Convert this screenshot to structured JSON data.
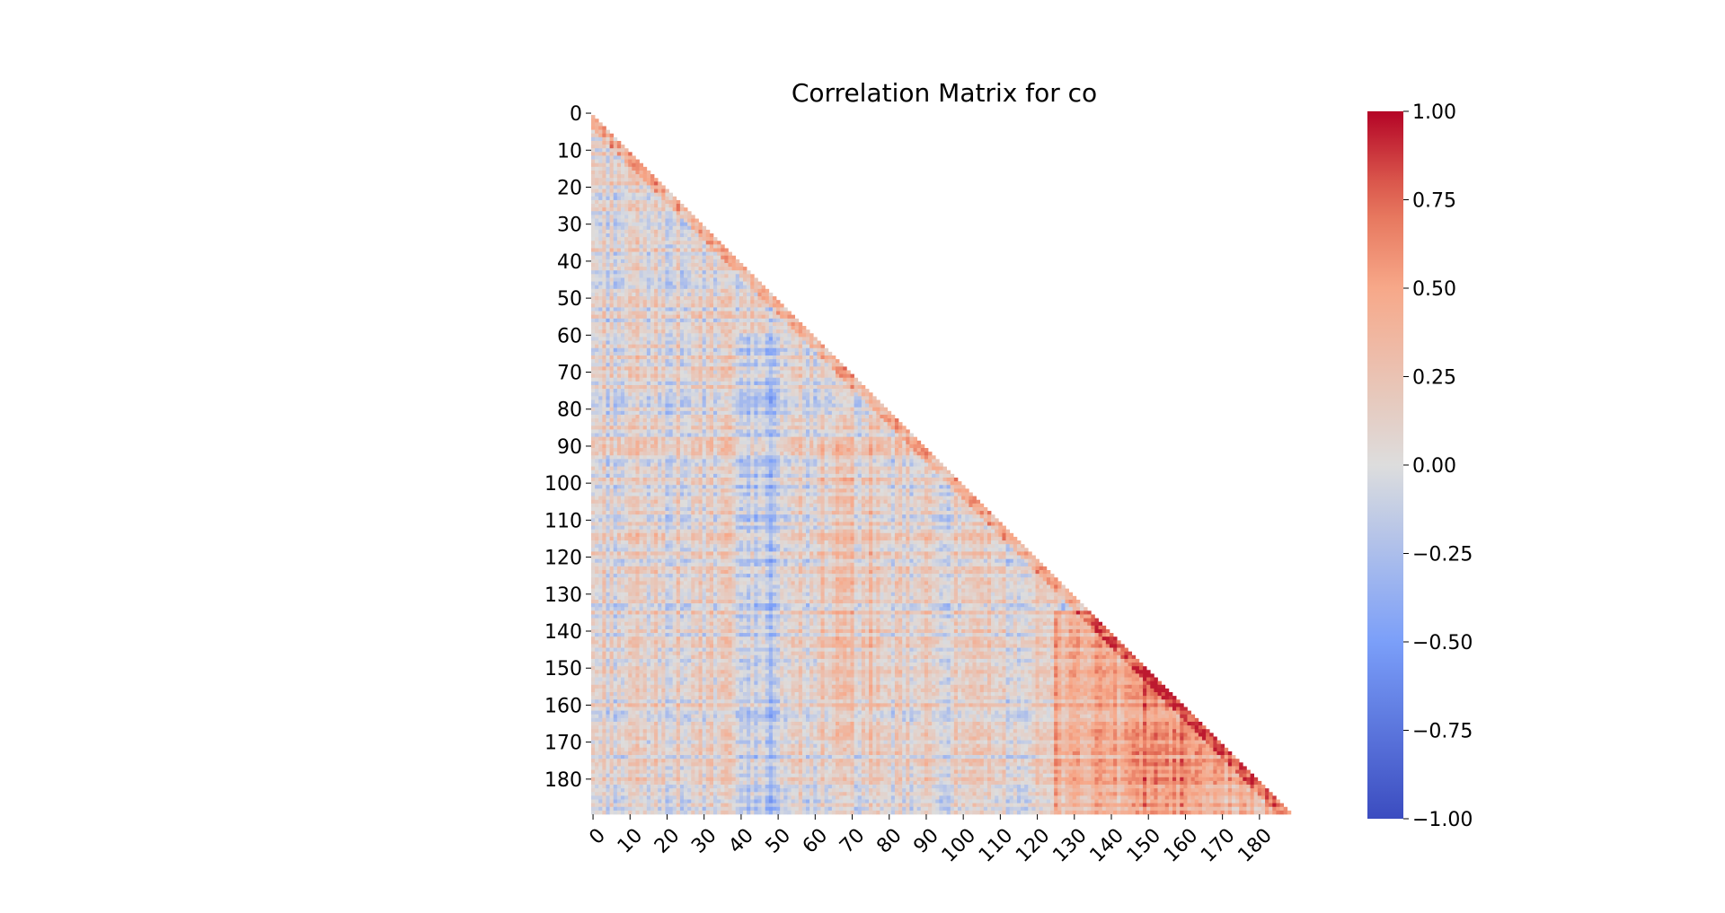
{
  "chart_data": {
    "type": "heatmap",
    "title": "Correlation Matrix for co",
    "xlabel": "",
    "ylabel": "",
    "matrix_size": 190,
    "mask": "upper-triangle",
    "x_tick_labels": [
      "0",
      "10",
      "20",
      "30",
      "40",
      "50",
      "60",
      "70",
      "80",
      "90",
      "100",
      "110",
      "120",
      "130",
      "140",
      "150",
      "160",
      "170",
      "180"
    ],
    "y_tick_labels": [
      "0",
      "10",
      "20",
      "30",
      "40",
      "50",
      "60",
      "70",
      "80",
      "90",
      "100",
      "110",
      "120",
      "130",
      "140",
      "150",
      "160",
      "170",
      "180"
    ],
    "tick_values": [
      0,
      10,
      20,
      30,
      40,
      50,
      60,
      70,
      80,
      90,
      100,
      110,
      120,
      130,
      140,
      150,
      160,
      170,
      180
    ],
    "colormap": "coolwarm",
    "color_stops": [
      {
        "value": -1.0,
        "color": "#3b4cc0"
      },
      {
        "value": -0.5,
        "color": "#7b9ff9"
      },
      {
        "value": 0.0,
        "color": "#dddddd"
      },
      {
        "value": 0.5,
        "color": "#f7a889"
      },
      {
        "value": 0.75,
        "color": "#e36c55"
      },
      {
        "value": 1.0,
        "color": "#b40426"
      }
    ],
    "value_range": [
      -1.0,
      1.0
    ],
    "colorbar": {
      "ticks": [
        1.0,
        0.75,
        0.5,
        0.25,
        0.0,
        -0.25,
        -0.5,
        -0.75,
        -1.0
      ],
      "tick_labels": [
        "1.00",
        "0.75",
        "0.50",
        "0.25",
        "0.00",
        "−0.25",
        "−0.50",
        "−0.75",
        "−1.00"
      ]
    },
    "grid": false,
    "legend": "colorbar-right"
  }
}
